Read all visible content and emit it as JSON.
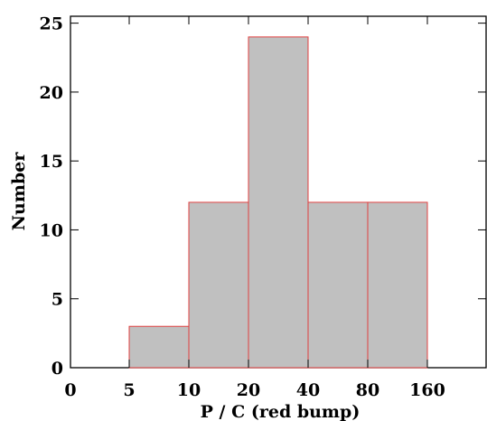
{
  "chart_data": {
    "type": "bar",
    "title": "",
    "xlabel": "P / C (red bump)",
    "ylabel": "Number",
    "categories": [
      "5-10",
      "10-20",
      "20-40",
      "40-80",
      "80-160"
    ],
    "values": [
      3,
      12,
      24,
      12,
      12
    ],
    "x_tick_labels": [
      "0",
      "5",
      "10",
      "20",
      "40",
      "80",
      "160"
    ],
    "y_ticks": [
      0,
      5,
      10,
      15,
      20,
      25
    ],
    "ylim": [
      0,
      25.5
    ],
    "grid": false,
    "bar_fill": "#c0c0c0",
    "bar_edge": "#e04040"
  }
}
